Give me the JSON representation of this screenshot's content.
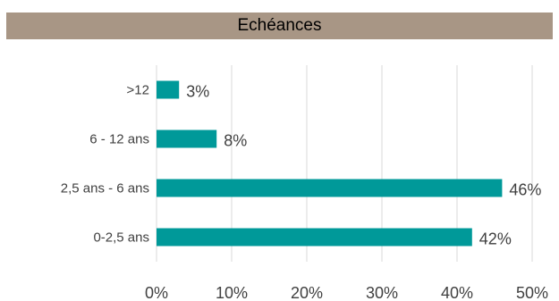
{
  "chart_data": {
    "type": "bar",
    "orientation": "horizontal",
    "title": "Echéances",
    "categories": [
      ">12",
      "6 - 12 ans",
      "2,5 ans - 6  ans",
      "0-2,5 ans"
    ],
    "values": [
      3,
      8,
      46,
      42
    ],
    "data_labels": [
      "3%",
      "8%",
      "46%",
      "42%"
    ],
    "xlim": [
      0,
      50
    ],
    "x_ticks": [
      "0%",
      "10%",
      "20%",
      "30%",
      "40%",
      "50%"
    ],
    "xlabel": "",
    "ylabel": "",
    "grid": true,
    "legend": "none",
    "colors": {
      "bar": "#009999",
      "title_bg": "#a89685",
      "grid": "#d9d9d9"
    }
  }
}
